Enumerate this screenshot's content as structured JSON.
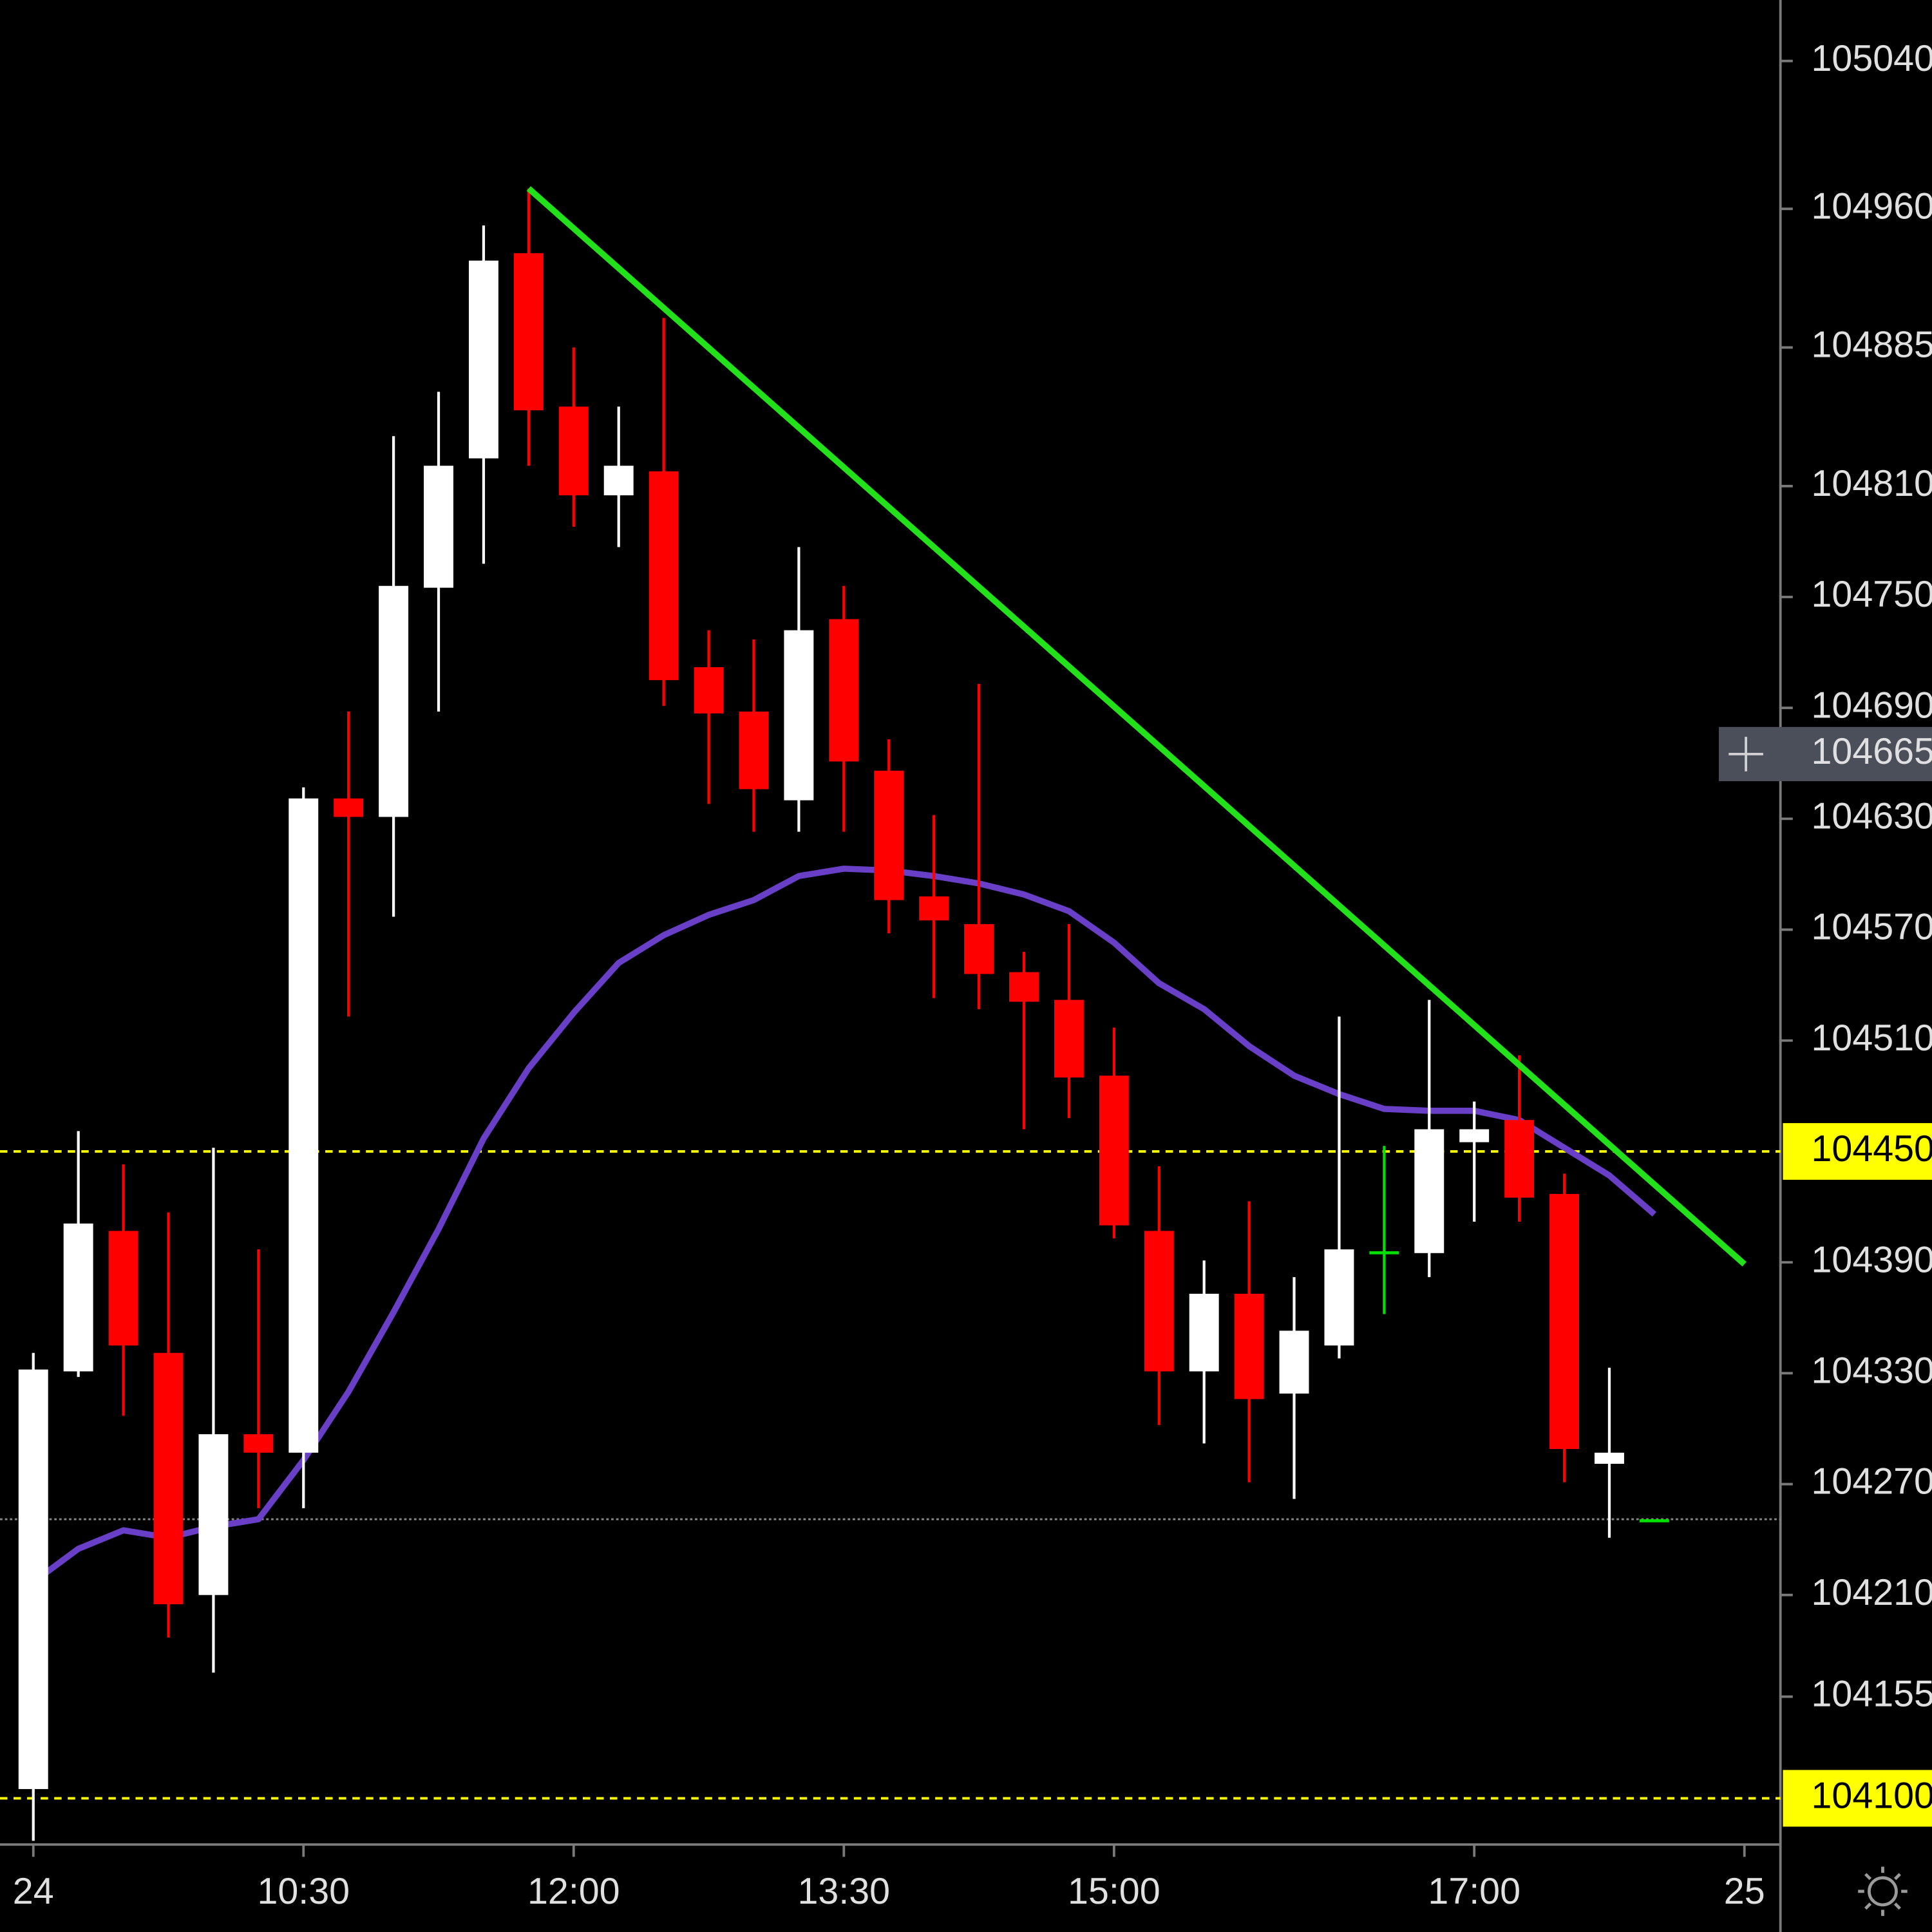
{
  "chart_data": {
    "type": "candlestick",
    "xlim": [
      -0.74,
      38.8
    ],
    "ylim": [
      104075,
      105073
    ],
    "xticks": [
      {
        "value": 0,
        "label": "24"
      },
      {
        "value": 6,
        "label": "10:30"
      },
      {
        "value": 12,
        "label": "12:00"
      },
      {
        "value": 18,
        "label": "13:30"
      },
      {
        "value": 24,
        "label": "15:00"
      },
      {
        "value": 32,
        "label": "17:00"
      },
      {
        "value": 38,
        "label": "25"
      }
    ],
    "yticks": [
      105040,
      104960,
      104885,
      104810,
      104750,
      104690,
      104630,
      104570,
      104510,
      104390,
      104330,
      104270,
      104210,
      104155
    ],
    "up_color": "#ffffff",
    "down_color": "#ff0000",
    "flat_color": "#00e000",
    "candles": [
      {
        "open": 104105,
        "high": 104341,
        "low": 104077,
        "close": 104332
      },
      {
        "open": 104331,
        "high": 104461,
        "low": 104328,
        "close": 104411
      },
      {
        "open": 104407,
        "high": 104443,
        "low": 104307,
        "close": 104345
      },
      {
        "open": 104341,
        "high": 104417,
        "low": 104187,
        "close": 104205
      },
      {
        "open": 104210,
        "high": 104452,
        "low": 104168,
        "close": 104297
      },
      {
        "open": 104297,
        "high": 104397,
        "low": 104257,
        "close": 104287
      },
      {
        "open": 104287,
        "high": 104647,
        "low": 104257,
        "close": 104641
      },
      {
        "open": 104641,
        "high": 104688,
        "low": 104523,
        "close": 104631
      },
      {
        "open": 104631,
        "high": 104837,
        "low": 104577,
        "close": 104756
      },
      {
        "open": 104755,
        "high": 104861,
        "low": 104688,
        "close": 104821
      },
      {
        "open": 104825,
        "high": 104951,
        "low": 104768,
        "close": 104932
      },
      {
        "open": 104936,
        "high": 104971,
        "low": 104821,
        "close": 104851
      },
      {
        "open": 104853,
        "high": 104885,
        "low": 104788,
        "close": 104805
      },
      {
        "open": 104805,
        "high": 104853,
        "low": 104777,
        "close": 104821
      },
      {
        "open": 104818,
        "high": 104901,
        "low": 104691,
        "close": 104705
      },
      {
        "open": 104712,
        "high": 104732,
        "low": 104638,
        "close": 104687
      },
      {
        "open": 104688,
        "high": 104727,
        "low": 104623,
        "close": 104646
      },
      {
        "open": 104640,
        "high": 104777,
        "low": 104623,
        "close": 104732
      },
      {
        "open": 104738,
        "high": 104756,
        "low": 104623,
        "close": 104661
      },
      {
        "open": 104656,
        "high": 104673,
        "low": 104568,
        "close": 104586
      },
      {
        "open": 104588,
        "high": 104632,
        "low": 104533,
        "close": 104575
      },
      {
        "open": 104573,
        "high": 104703,
        "low": 104527,
        "close": 104546
      },
      {
        "open": 104547,
        "high": 104558,
        "low": 104462,
        "close": 104531
      },
      {
        "open": 104532,
        "high": 104573,
        "low": 104468,
        "close": 104490
      },
      {
        "open": 104491,
        "high": 104517,
        "low": 104403,
        "close": 104410
      },
      {
        "open": 104407,
        "high": 104442,
        "low": 104302,
        "close": 104331
      },
      {
        "open": 104331,
        "high": 104391,
        "low": 104292,
        "close": 104373
      },
      {
        "open": 104373,
        "high": 104423,
        "low": 104271,
        "close": 104316
      },
      {
        "open": 104319,
        "high": 104382,
        "low": 104262,
        "close": 104353
      },
      {
        "open": 104345,
        "high": 104523,
        "low": 104338,
        "close": 104397
      },
      {
        "open": 104396,
        "high": 104453,
        "low": 104362,
        "close": 104396
      },
      {
        "open": 104395,
        "high": 104532,
        "low": 104382,
        "close": 104462
      },
      {
        "open": 104455,
        "high": 104477,
        "low": 104412,
        "close": 104462
      },
      {
        "open": 104467,
        "high": 104502,
        "low": 104412,
        "close": 104425
      },
      {
        "open": 104427,
        "high": 104438,
        "low": 104271,
        "close": 104289
      },
      {
        "open": 104281,
        "high": 104333,
        "low": 104241,
        "close": 104287
      },
      {
        "open": 104251,
        "high": 104251,
        "low": 104251,
        "close": 104251
      }
    ],
    "moving_average": {
      "color": "#6a3fc8",
      "values": [
        104217,
        104235,
        104245,
        104241,
        104247,
        104251,
        104283,
        104320,
        104363,
        104408,
        104457,
        104495,
        104525,
        104552,
        104567,
        104578,
        104586,
        104599,
        104603,
        104602,
        104599,
        104595,
        104589,
        104580,
        104563,
        104541,
        104527,
        104507,
        104491,
        104481,
        104473,
        104472,
        104472,
        104467,
        104452,
        104437,
        104416
      ]
    },
    "trendline": {
      "color": "#22e01a",
      "x": [
        11,
        38
      ],
      "values": [
        104971,
        104389
      ]
    },
    "price_lines": [
      {
        "value": 104450,
        "color": "#ffff00"
      },
      {
        "value": 104100,
        "color": "#ffff00"
      }
    ],
    "last_price_line": {
      "value": 104251,
      "color": "#8a8a8a"
    },
    "crosshair": {
      "value": 104665
    }
  }
}
